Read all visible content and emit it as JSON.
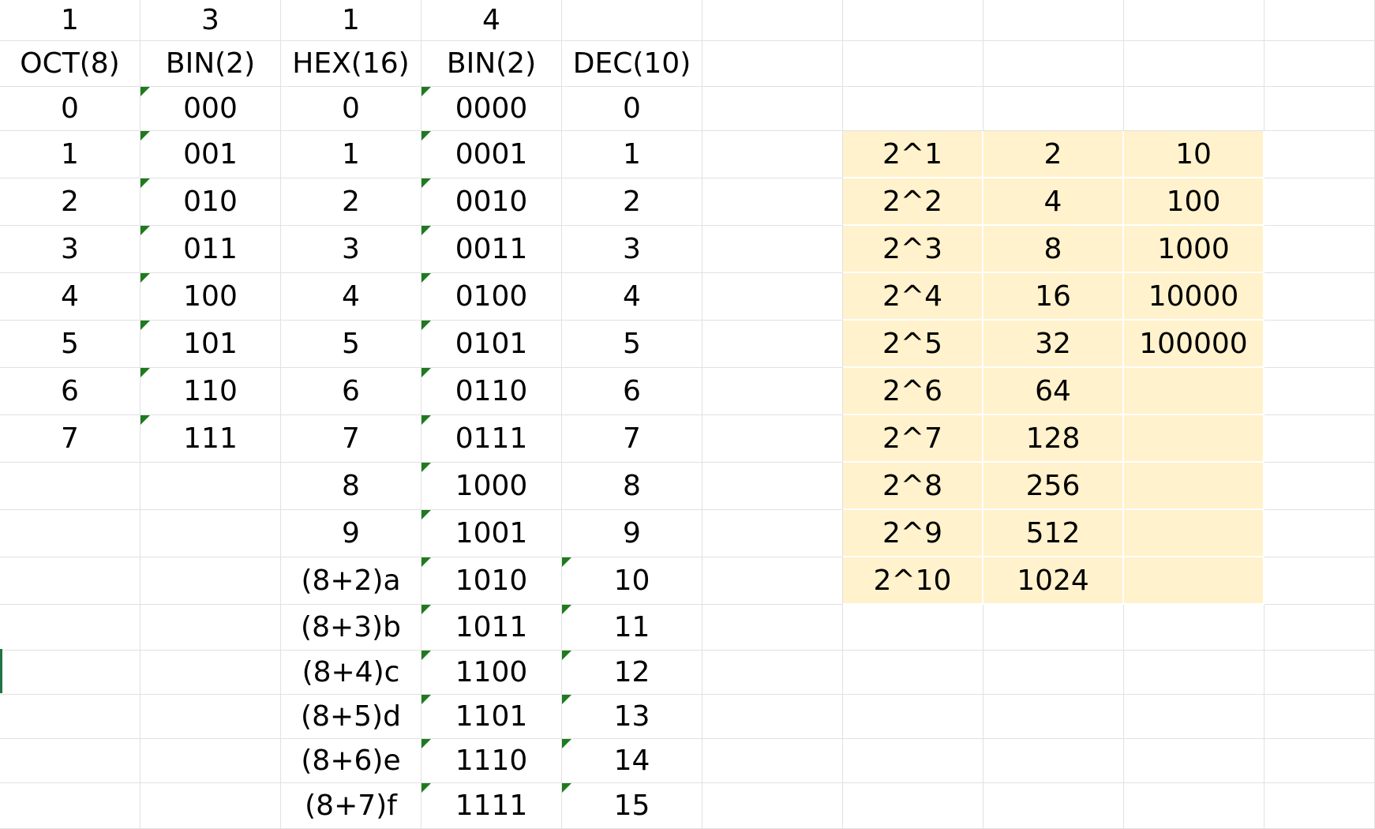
{
  "sheet": {
    "rows": [
      [
        "1",
        "3",
        "1",
        "4",
        "",
        "",
        "",
        "",
        "",
        ""
      ],
      [
        "OCT(8)",
        "BIN(2)",
        "HEX(16)",
        "BIN(2)",
        "DEC(10)",
        "",
        "",
        "",
        "",
        ""
      ],
      [
        "0",
        "000",
        "0",
        "0000",
        "0",
        "",
        "",
        "",
        "",
        ""
      ],
      [
        "1",
        "001",
        "1",
        "0001",
        "1",
        "",
        "2^1",
        "2",
        "10",
        ""
      ],
      [
        "2",
        "010",
        "2",
        "0010",
        "2",
        "",
        "2^2",
        "4",
        "100",
        ""
      ],
      [
        "3",
        "011",
        "3",
        "0011",
        "3",
        "",
        "2^3",
        "8",
        "1000",
        ""
      ],
      [
        "4",
        "100",
        "4",
        "0100",
        "4",
        "",
        "2^4",
        "16",
        "10000",
        ""
      ],
      [
        "5",
        "101",
        "5",
        "0101",
        "5",
        "",
        "2^5",
        "32",
        "100000",
        ""
      ],
      [
        "6",
        "110",
        "6",
        "0110",
        "6",
        "",
        "2^6",
        "64",
        "",
        ""
      ],
      [
        "7",
        "111",
        "7",
        "0111",
        "7",
        "",
        "2^7",
        "128",
        "",
        ""
      ],
      [
        "",
        "",
        "8",
        "1000",
        "8",
        "",
        "2^8",
        "256",
        "",
        ""
      ],
      [
        "",
        "",
        "9",
        "1001",
        "9",
        "",
        "2^9",
        "512",
        "",
        ""
      ],
      [
        "",
        "",
        "(8+2)a",
        "1010",
        "10",
        "",
        "2^10",
        "1024",
        "",
        ""
      ],
      [
        "",
        "",
        "(8+3)b",
        "1011",
        "11",
        "",
        "",
        "",
        "",
        ""
      ],
      [
        "",
        "",
        "(8+4)c",
        "1100",
        "12",
        "",
        "",
        "",
        "",
        ""
      ],
      [
        "",
        "",
        "(8+5)d",
        "1101",
        "13",
        "",
        "",
        "",
        "",
        ""
      ],
      [
        "",
        "",
        "(8+6)e",
        "1110",
        "14",
        "",
        "",
        "",
        "",
        ""
      ],
      [
        "",
        "",
        "(8+7)f",
        "1111",
        "15",
        "",
        "",
        "",
        "",
        ""
      ]
    ],
    "highlight_color": "#fff2cc",
    "text_stored_indicator_color": "#1f7a1f",
    "selection_color": "#217346"
  }
}
